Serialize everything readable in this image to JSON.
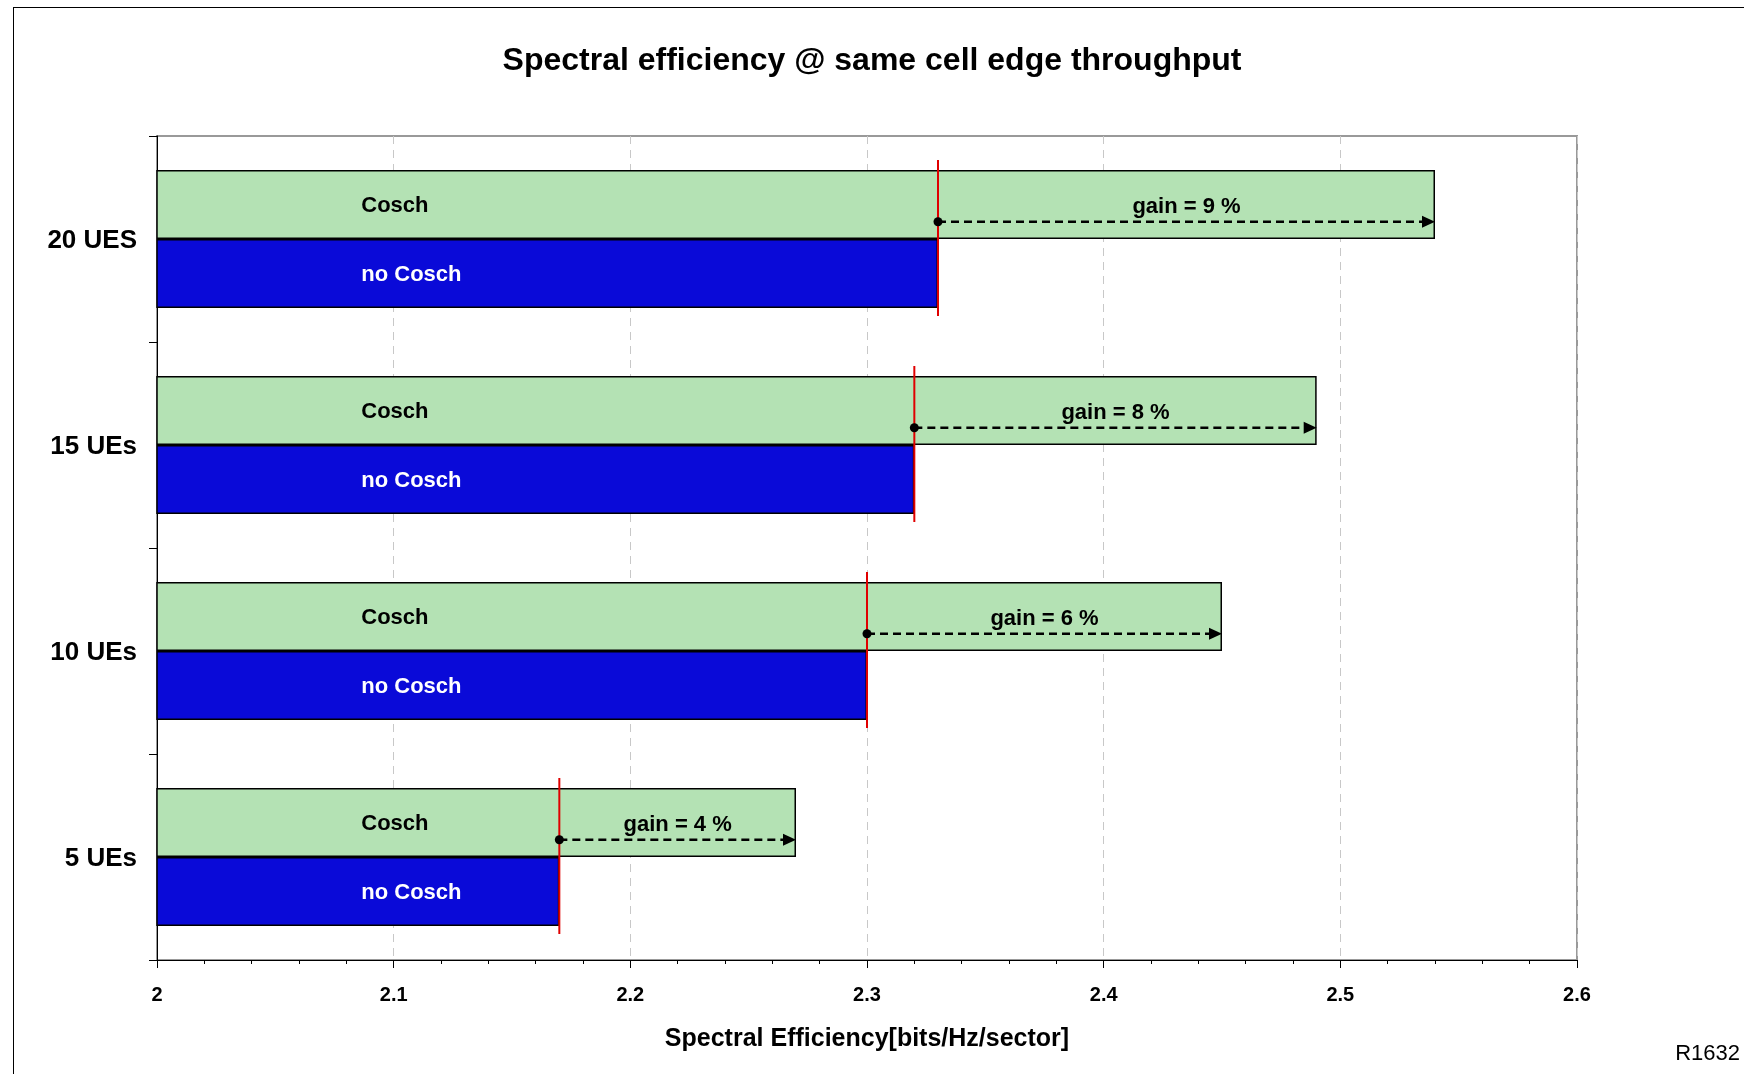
{
  "chart_data": {
    "type": "bar",
    "orientation": "horizontal",
    "title": "Spectral efficiency @ same cell edge throughput",
    "xlabel": "Spectral Efficiency[bits/Hz/sector]",
    "categories": [
      "20 UES",
      "15 UEs",
      "10 UEs",
      "5 UEs"
    ],
    "series": [
      {
        "name": "Cosch",
        "color": "#b4e2b4",
        "values": [
          2.54,
          2.49,
          2.45,
          2.27
        ]
      },
      {
        "name": "no Cosch",
        "color": "#0a0ad8",
        "values": [
          2.33,
          2.32,
          2.3,
          2.17
        ]
      }
    ],
    "xlim": [
      2,
      2.6
    ],
    "xticks": [
      2,
      2.1,
      2.2,
      2.3,
      2.4,
      2.5,
      2.6
    ],
    "grid": "x",
    "legend": false,
    "annotations": [
      "gain = 9 %",
      "gain = 8 %",
      "gain = 6 %",
      "gain = 4 %",
      "R1632"
    ]
  }
}
